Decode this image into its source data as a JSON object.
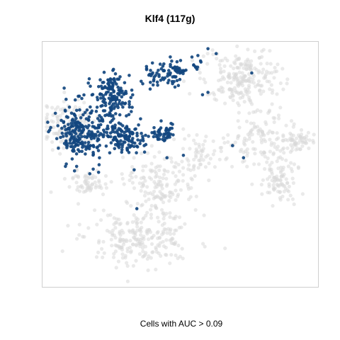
{
  "chart_data": {
    "type": "scatter",
    "title": "Klf4 (117g)",
    "xlabel": "Cells with AUC > 0.09",
    "ylabel": "",
    "grid": false,
    "axes_ticks": false,
    "colors": {
      "background_cells": "#d9d9d9",
      "positive_cells": "#12467f",
      "frame": "#cfcfcf"
    },
    "series": [
      {
        "clusters": [
          {
            "cx": 0.09,
            "cy": 0.33,
            "rx": 0.09,
            "ry": 0.09,
            "n": 130
          },
          {
            "cx": 0.16,
            "cy": 0.58,
            "rx": 0.07,
            "ry": 0.05,
            "n": 60
          },
          {
            "cx": 0.42,
            "cy": 0.58,
            "rx": 0.12,
            "ry": 0.11,
            "n": 150
          },
          {
            "cx": 0.35,
            "cy": 0.8,
            "rx": 0.18,
            "ry": 0.1,
            "n": 230
          },
          {
            "cx": 0.72,
            "cy": 0.14,
            "rx": 0.13,
            "ry": 0.11,
            "n": 220
          },
          {
            "cx": 0.78,
            "cy": 0.38,
            "rx": 0.1,
            "ry": 0.12,
            "n": 110
          },
          {
            "cx": 0.86,
            "cy": 0.56,
            "rx": 0.06,
            "ry": 0.09,
            "n": 90
          },
          {
            "cx": 0.93,
            "cy": 0.4,
            "rx": 0.06,
            "ry": 0.04,
            "n": 60
          },
          {
            "cx": 0.57,
            "cy": 0.46,
            "rx": 0.08,
            "ry": 0.07,
            "n": 60
          }
        ]
      },
      {
        "clusters": [
          {
            "cx": 0.13,
            "cy": 0.36,
            "rx": 0.08,
            "ry": 0.11,
            "n": 220
          },
          {
            "cx": 0.25,
            "cy": 0.22,
            "rx": 0.06,
            "ry": 0.09,
            "n": 150
          },
          {
            "cx": 0.28,
            "cy": 0.38,
            "rx": 0.08,
            "ry": 0.06,
            "n": 140
          },
          {
            "cx": 0.47,
            "cy": 0.12,
            "rx": 0.04,
            "ry": 0.05,
            "n": 60
          },
          {
            "cx": 0.44,
            "cy": 0.37,
            "rx": 0.04,
            "ry": 0.04,
            "n": 45
          },
          {
            "cx": 0.4,
            "cy": 0.14,
            "rx": 0.04,
            "ry": 0.05,
            "n": 25
          },
          {
            "cx": 0.56,
            "cy": 0.09,
            "rx": 0.02,
            "ry": 0.03,
            "n": 10
          }
        ],
        "points": [
          [
            0.63,
            0.04
          ],
          [
            0.76,
            0.12
          ],
          [
            0.6,
            0.2
          ],
          [
            0.58,
            0.21
          ],
          [
            0.69,
            0.42
          ],
          [
            0.73,
            0.47
          ],
          [
            0.34,
            0.68
          ],
          [
            0.51,
            0.46
          ],
          [
            0.45,
            0.47
          ],
          [
            0.33,
            0.52
          ],
          [
            0.6,
            0.02
          ],
          [
            0.2,
            0.53
          ]
        ]
      }
    ]
  }
}
